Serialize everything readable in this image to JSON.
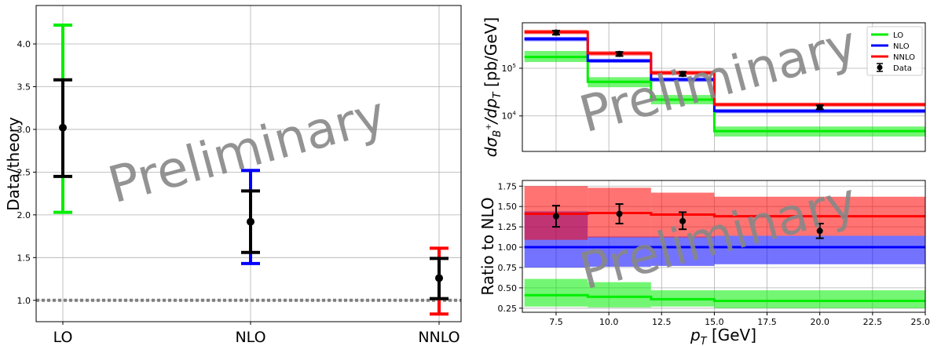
{
  "watermark": "Preliminary",
  "colors": {
    "lo": "#00ee00",
    "nlo": "#0000ff",
    "nnlo": "#ff0000",
    "data": "#000000",
    "grid": "#b0b0b0",
    "ref": "#808080"
  },
  "chart_data": [
    {
      "type": "scatter",
      "ylabel": "Data/theory",
      "ylim": [
        0.75,
        4.45
      ],
      "yticks": [
        "1.0",
        "1.5",
        "2.0",
        "2.5",
        "3.0",
        "3.5",
        "4.0"
      ],
      "categories": [
        "LO",
        "NLO",
        "NNLO"
      ],
      "reference_line": 1.0,
      "grid": true,
      "points": [
        {
          "category": "LO",
          "value": 3.02,
          "stat_low": 2.45,
          "stat_high": 3.58,
          "total_low": 2.03,
          "total_high": 4.22,
          "color": "#00ee00"
        },
        {
          "category": "NLO",
          "value": 1.92,
          "stat_low": 1.56,
          "stat_high": 2.28,
          "total_low": 1.43,
          "total_high": 2.52,
          "color": "#0000ff"
        },
        {
          "category": "NNLO",
          "value": 1.26,
          "stat_low": 1.02,
          "stat_high": 1.49,
          "total_low": 0.84,
          "total_high": 1.61,
          "color": "#ff0000"
        }
      ]
    },
    {
      "type": "step",
      "ylabel_parts": {
        "pre": "d",
        "sigma": "σ",
        "sub": "B",
        "sup": "+",
        "mid": "/dp",
        "sub2": "T",
        "post": " [pb/GeV]"
      },
      "yscale": "log",
      "ylim": [
        1800,
        900000
      ],
      "yticks": [
        {
          "label": "10",
          "exp": "4",
          "value": 10000
        },
        {
          "label": "10",
          "exp": "5",
          "value": 100000
        }
      ],
      "xlim": [
        5.9,
        25.0
      ],
      "bin_edges": [
        6,
        9,
        12,
        15,
        25
      ],
      "grid": true,
      "legend_position": "upper right",
      "series": [
        {
          "name": "LO",
          "color": "#00ee00",
          "values": [
            172000,
            52000,
            22000,
            4800
          ],
          "band_low": [
            135000,
            40000,
            17500,
            3700
          ],
          "band_high": [
            230000,
            65000,
            27500,
            6000
          ]
        },
        {
          "name": "NLO",
          "color": "#0000ff",
          "values": [
            410000,
            143000,
            58000,
            12700
          ],
          "band_low": [
            370000,
            130000,
            52000,
            11400
          ],
          "band_high": [
            455000,
            158000,
            64000,
            14000
          ]
        },
        {
          "name": "NNLO",
          "color": "#ff0000",
          "values": [
            575000,
            205000,
            80000,
            17300
          ],
          "band_low": [
            520000,
            185000,
            72000,
            15700
          ],
          "band_high": [
            640000,
            228000,
            89000,
            19000
          ]
        }
      ],
      "data": {
        "name": "Data",
        "x": [
          7.5,
          10.5,
          13.5,
          20.0
        ],
        "y": [
          560000,
          200000,
          76000,
          15200
        ],
        "err_low": [
          505000,
          180000,
          69000,
          13800
        ],
        "err_high": [
          615000,
          220000,
          84000,
          16700
        ]
      }
    },
    {
      "type": "step",
      "ylabel": "Ratio to NLO",
      "xlabel_parts": {
        "pre": "p",
        "sub": "T",
        "post": " [GeV]"
      },
      "xlim": [
        5.9,
        25.0
      ],
      "ylim": [
        0.2,
        1.82
      ],
      "xticks": [
        "7.5",
        "10.0",
        "12.5",
        "15.0",
        "17.5",
        "20.0",
        "22.5",
        "25.0"
      ],
      "yticks": [
        "0.25",
        "0.50",
        "0.75",
        "1.00",
        "1.25",
        "1.50",
        "1.75"
      ],
      "bin_edges": [
        6,
        9,
        12,
        15,
        25
      ],
      "grid": true,
      "series": [
        {
          "name": "LO",
          "color": "#00ee00",
          "values": [
            0.41,
            0.39,
            0.36,
            0.34
          ],
          "band_low": [
            0.27,
            0.26,
            0.27,
            0.25
          ],
          "band_high": [
            0.61,
            0.57,
            0.47,
            0.47
          ]
        },
        {
          "name": "NLO",
          "color": "#0000ff",
          "values": [
            1.0,
            1.0,
            1.0,
            1.0
          ],
          "band_low": [
            0.75,
            0.76,
            0.77,
            0.79
          ],
          "band_high": [
            1.44,
            1.13,
            1.13,
            1.14
          ]
        },
        {
          "name": "NNLO",
          "color": "#ff0000",
          "values": [
            1.41,
            1.42,
            1.4,
            1.38
          ],
          "band_low": [
            1.09,
            1.12,
            1.12,
            1.14
          ],
          "band_high": [
            1.75,
            1.73,
            1.67,
            1.62
          ]
        }
      ],
      "data": {
        "name": "Data",
        "x": [
          7.5,
          10.5,
          13.5,
          20.0
        ],
        "y": [
          1.38,
          1.41,
          1.32,
          1.2
        ],
        "err_low": [
          1.25,
          1.29,
          1.22,
          1.11
        ],
        "err_high": [
          1.51,
          1.53,
          1.43,
          1.29
        ]
      }
    }
  ]
}
